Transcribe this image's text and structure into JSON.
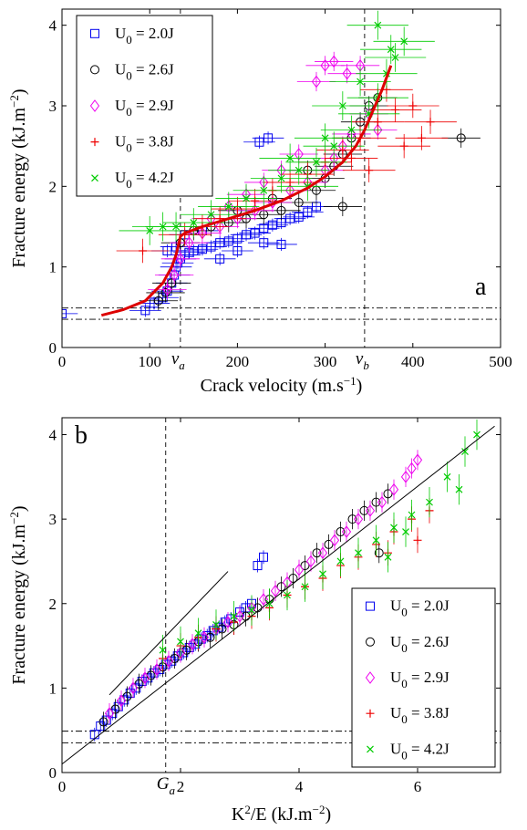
{
  "chart_data": [
    {
      "type": "scatter",
      "panel_letter": "a",
      "xlabel": "Crack velocity (m.s",
      "xlabel_sup": "−1",
      "xlabel_end": ")",
      "ylabel": "Fracture energy (kJ.m",
      "ylabel_sup": "−2",
      "ylabel_end": ")",
      "xlim": [
        0,
        500
      ],
      "ylim": [
        0,
        4.2
      ],
      "xticks": [
        {
          "value": 0,
          "label": "0"
        },
        {
          "value": 100,
          "label": "100"
        },
        {
          "value": 200,
          "label": "200"
        },
        {
          "value": 300,
          "label": "300"
        },
        {
          "value": 400,
          "label": "400"
        },
        {
          "value": 500,
          "label": "500"
        }
      ],
      "yticks": [
        {
          "value": 0,
          "label": "0"
        },
        {
          "value": 1,
          "label": "1"
        },
        {
          "value": 2,
          "label": "2"
        },
        {
          "value": 3,
          "label": "3"
        },
        {
          "value": 4,
          "label": "4"
        }
      ],
      "vlines": [
        {
          "x": 135,
          "label": "v",
          "sub": "a"
        },
        {
          "x": 345,
          "label": "v",
          "sub": "b"
        }
      ],
      "hlines": [
        0.35,
        0.49
      ],
      "legend_position": "top-left",
      "fit_curve": {
        "color": "#dd0000",
        "x": [
          45,
          70,
          95,
          115,
          125,
          130,
          133,
          135,
          140,
          160,
          190,
          220,
          250,
          280,
          300,
          320,
          335,
          345,
          355,
          365,
          375
        ],
        "y": [
          0.4,
          0.47,
          0.58,
          0.8,
          1.0,
          1.15,
          1.28,
          1.38,
          1.42,
          1.5,
          1.6,
          1.7,
          1.82,
          1.98,
          2.12,
          2.3,
          2.5,
          2.7,
          2.95,
          3.2,
          3.5
        ]
      },
      "series": [
        {
          "name": "U",
          "sub": "0",
          "suffix": " = 2.0J",
          "marker": "square",
          "color": "#0000ee",
          "x": [
            0,
            95,
            105,
            115,
            120,
            125,
            128,
            130,
            132,
            135,
            140,
            145,
            150,
            160,
            170,
            180,
            190,
            200,
            210,
            220,
            230,
            240,
            250,
            260,
            270,
            280,
            290,
            180,
            200,
            230,
            250,
            160,
            140,
            130,
            120,
            225,
            235
          ],
          "y": [
            0.42,
            0.46,
            0.55,
            0.62,
            0.7,
            0.8,
            0.9,
            1.0,
            1.05,
            1.1,
            1.15,
            1.18,
            1.2,
            1.22,
            1.25,
            1.3,
            1.32,
            1.35,
            1.4,
            1.42,
            1.48,
            1.52,
            1.55,
            1.6,
            1.62,
            1.68,
            1.75,
            1.1,
            1.2,
            1.3,
            1.28,
            1.45,
            1.4,
            1.25,
            1.2,
            2.55,
            2.6
          ],
          "xerr": 18,
          "yerr": 0.08
        },
        {
          "name": "U",
          "sub": "0",
          "suffix": " = 2.6J",
          "marker": "circle",
          "color": "#000000",
          "x": [
            110,
            118,
            125,
            135,
            150,
            170,
            190,
            210,
            230,
            250,
            270,
            290,
            300,
            310,
            320,
            330,
            340,
            350,
            360,
            455,
            200,
            240,
            280,
            320
          ],
          "y": [
            0.58,
            0.68,
            0.8,
            1.3,
            1.45,
            1.5,
            1.55,
            1.6,
            1.65,
            1.7,
            1.8,
            1.95,
            2.1,
            2.25,
            2.4,
            2.6,
            2.8,
            3.0,
            3.1,
            2.6,
            1.7,
            1.85,
            2.2,
            1.75
          ],
          "xerr": 22,
          "yerr": 0.12
        },
        {
          "name": "U",
          "sub": "0",
          "suffix": " = 2.9J",
          "marker": "diamond",
          "color": "#ee00ee",
          "x": [
            120,
            128,
            135,
            145,
            160,
            180,
            200,
            220,
            240,
            260,
            280,
            300,
            310,
            320,
            330,
            290,
            300,
            310,
            325,
            340,
            350,
            360,
            270,
            250,
            230,
            210,
            190,
            170
          ],
          "y": [
            0.72,
            0.9,
            1.1,
            1.3,
            1.42,
            1.5,
            1.6,
            1.7,
            1.8,
            1.95,
            2.05,
            2.2,
            2.35,
            2.5,
            2.65,
            3.3,
            3.5,
            3.55,
            3.4,
            3.5,
            2.9,
            2.7,
            2.4,
            2.2,
            2.05,
            1.9,
            1.75,
            1.6
          ],
          "xerr": 22,
          "yerr": 0.12
        },
        {
          "name": "U",
          "sub": "0",
          "suffix": " = 3.8J",
          "marker": "plus",
          "color": "#ee0000",
          "x": [
            92,
            140,
            160,
            180,
            200,
            220,
            240,
            260,
            280,
            300,
            320,
            340,
            360,
            380,
            400,
            420,
            390,
            410,
            370,
            350,
            330
          ],
          "y": [
            1.2,
            1.4,
            1.5,
            1.6,
            1.72,
            1.82,
            1.95,
            2.05,
            2.15,
            2.3,
            2.45,
            2.6,
            2.8,
            2.95,
            3.0,
            2.8,
            2.5,
            2.6,
            3.2,
            2.2,
            2.35
          ],
          "xerr": 30,
          "yerr": 0.15
        },
        {
          "name": "U",
          "sub": "0",
          "suffix": " = 4.2J",
          "marker": "x",
          "color": "#00cc00",
          "x": [
            100,
            115,
            130,
            150,
            170,
            190,
            210,
            230,
            250,
            270,
            290,
            310,
            330,
            350,
            360,
            370,
            380,
            390,
            340,
            320,
            300,
            360,
            375,
            280,
            260
          ],
          "y": [
            1.45,
            1.5,
            1.5,
            1.55,
            1.65,
            1.75,
            1.85,
            1.95,
            2.1,
            2.2,
            2.3,
            2.5,
            2.7,
            2.9,
            3.1,
            3.4,
            3.6,
            3.8,
            3.3,
            3.0,
            2.6,
            4.0,
            3.7,
            2.0,
            2.35
          ],
          "xerr": 35,
          "yerr": 0.18
        }
      ]
    },
    {
      "type": "scatter",
      "panel_letter": "b",
      "xlabel": "K",
      "xlabel_sup": "2",
      "xlabel_end": "/E (kJ.m",
      "xlabel_sup2": "−2",
      "xlabel_end2": ")",
      "ylabel": "Fracture energy (kJ.m",
      "ylabel_sup": "−2",
      "ylabel_end": ")",
      "xlim": [
        0,
        7.4
      ],
      "ylim": [
        0,
        4.2
      ],
      "xticks": [
        {
          "value": 0,
          "label": "0"
        },
        {
          "value": 2,
          "label": "2"
        },
        {
          "value": 4,
          "label": "4"
        },
        {
          "value": 6,
          "label": "6"
        }
      ],
      "yticks": [
        {
          "value": 0,
          "label": "0"
        },
        {
          "value": 1,
          "label": "1"
        },
        {
          "value": 2,
          "label": "2"
        },
        {
          "value": 3,
          "label": "3"
        },
        {
          "value": 4,
          "label": "4"
        }
      ],
      "vlines": [
        {
          "x": 1.75,
          "label": "G",
          "sub": "a"
        }
      ],
      "hlines": [
        0.35,
        0.49
      ],
      "legend_position": "bottom-right",
      "fit_lines": [
        {
          "x": [
            0.0,
            7.3
          ],
          "y": [
            0.1,
            4.1
          ]
        },
        {
          "x": [
            0.8,
            2.8
          ],
          "y": [
            0.92,
            2.38
          ]
        }
      ],
      "series": [
        {
          "name": "U",
          "sub": "0",
          "suffix": " = 2.0J",
          "marker": "square",
          "color": "#0000ee",
          "x": [
            0.55,
            0.65,
            0.75,
            0.85,
            0.95,
            1.05,
            1.15,
            1.25,
            1.35,
            1.45,
            1.55,
            1.65,
            1.75,
            1.85,
            1.95,
            2.05,
            2.15,
            2.25,
            2.35,
            2.45,
            2.55,
            2.65,
            2.75,
            2.85,
            3.0,
            3.1,
            3.2,
            3.3,
            3.4
          ],
          "y": [
            0.45,
            0.55,
            0.62,
            0.7,
            0.78,
            0.86,
            0.94,
            1.0,
            1.08,
            1.12,
            1.18,
            1.22,
            1.28,
            1.32,
            1.38,
            1.42,
            1.48,
            1.52,
            1.58,
            1.62,
            1.68,
            1.72,
            1.78,
            1.82,
            1.9,
            1.95,
            2.0,
            2.45,
            2.55
          ],
          "yerr": 0.08
        },
        {
          "name": "U",
          "sub": "0",
          "suffix": " = 2.6J",
          "marker": "circle",
          "color": "#000000",
          "x": [
            0.7,
            0.9,
            1.1,
            1.3,
            1.5,
            1.7,
            1.9,
            2.1,
            2.3,
            2.5,
            2.7,
            2.9,
            3.1,
            3.3,
            3.5,
            3.7,
            3.9,
            4.1,
            4.3,
            4.5,
            4.7,
            4.9,
            5.1,
            5.3,
            5.5,
            5.35
          ],
          "y": [
            0.6,
            0.75,
            0.9,
            1.05,
            1.15,
            1.25,
            1.35,
            1.45,
            1.55,
            1.6,
            1.7,
            1.75,
            1.85,
            1.95,
            2.05,
            2.2,
            2.3,
            2.45,
            2.6,
            2.7,
            2.85,
            3.0,
            3.1,
            3.2,
            3.3,
            2.6
          ],
          "yerr": 0.12
        },
        {
          "name": "U",
          "sub": "0",
          "suffix": " = 2.9J",
          "marker": "diamond",
          "color": "#ee00ee",
          "x": [
            0.8,
            1.0,
            1.2,
            1.4,
            1.6,
            1.8,
            2.0,
            2.2,
            2.4,
            2.6,
            2.8,
            3.0,
            3.2,
            3.4,
            3.6,
            3.8,
            4.0,
            4.2,
            4.4,
            4.6,
            4.8,
            5.0,
            5.2,
            5.4,
            5.6,
            5.8,
            5.9,
            6.0
          ],
          "y": [
            0.7,
            0.85,
            1.0,
            1.12,
            1.22,
            1.32,
            1.42,
            1.52,
            1.6,
            1.7,
            1.78,
            1.85,
            1.95,
            2.05,
            2.15,
            2.25,
            2.4,
            2.5,
            2.6,
            2.75,
            2.85,
            3.0,
            3.1,
            3.2,
            3.35,
            3.5,
            3.6,
            3.7
          ],
          "yerr": 0.12
        },
        {
          "name": "U",
          "sub": "0",
          "suffix": " = 3.8J",
          "marker": "plus",
          "color": "#ee0000",
          "x": [
            1.7,
            2.0,
            2.3,
            2.6,
            2.9,
            3.2,
            3.5,
            3.8,
            4.1,
            4.4,
            4.7,
            5.0,
            5.3,
            5.6,
            5.9,
            6.2,
            6.0,
            5.5
          ],
          "y": [
            1.35,
            1.5,
            1.6,
            1.7,
            1.78,
            1.85,
            1.95,
            2.1,
            2.2,
            2.3,
            2.45,
            2.55,
            2.7,
            2.85,
            3.0,
            3.1,
            2.75,
            2.6
          ],
          "yerr": 0.15
        },
        {
          "name": "U",
          "sub": "0",
          "suffix": " = 4.2J",
          "marker": "x",
          "color": "#00cc00",
          "x": [
            1.7,
            2.0,
            2.3,
            2.6,
            2.9,
            3.2,
            3.5,
            3.8,
            4.1,
            4.4,
            4.7,
            5.0,
            5.3,
            5.6,
            5.9,
            6.2,
            6.5,
            6.8,
            7.0,
            6.7,
            5.5,
            5.8
          ],
          "y": [
            1.45,
            1.55,
            1.65,
            1.75,
            1.85,
            1.92,
            2.0,
            2.1,
            2.2,
            2.35,
            2.5,
            2.6,
            2.75,
            2.9,
            3.05,
            3.2,
            3.5,
            3.8,
            4.0,
            3.35,
            2.55,
            2.85
          ],
          "yerr": 0.18
        }
      ]
    }
  ]
}
